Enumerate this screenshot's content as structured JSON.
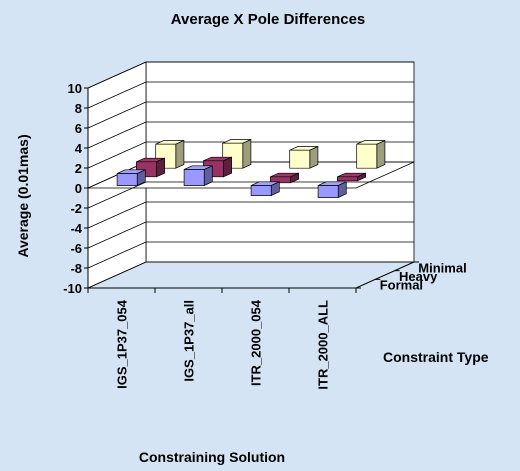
{
  "chart_data": {
    "type": "bar",
    "subtype": "3d-grouped-bar",
    "title": "Average X Pole Differences",
    "xlabel": "Constraining Solution",
    "ylabel": "Average (0.01mas)",
    "zlabel": "Constraint Type",
    "categories": [
      "IGS_1P37_054",
      "IGS_1P37_all",
      "ITR_2000_054",
      "ITR_2000_ALL"
    ],
    "depth_categories": [
      "Formal",
      "Heavy",
      "Minimal"
    ],
    "yticks": [
      10,
      8,
      6,
      4,
      2,
      0,
      -2,
      -4,
      -6,
      -8,
      -10
    ],
    "ylim": [
      -10,
      10
    ],
    "grid": true,
    "series": [
      {
        "name": "Formal",
        "color": "#9999ff",
        "values": [
          1.2,
          1.6,
          -1.0,
          -1.2
        ]
      },
      {
        "name": "Heavy",
        "color": "#993366",
        "values": [
          1.5,
          1.6,
          -0.6,
          -0.4
        ]
      },
      {
        "name": "Minimal",
        "color": "#ffffcc",
        "values": [
          2.4,
          2.5,
          1.8,
          2.4
        ]
      }
    ]
  }
}
